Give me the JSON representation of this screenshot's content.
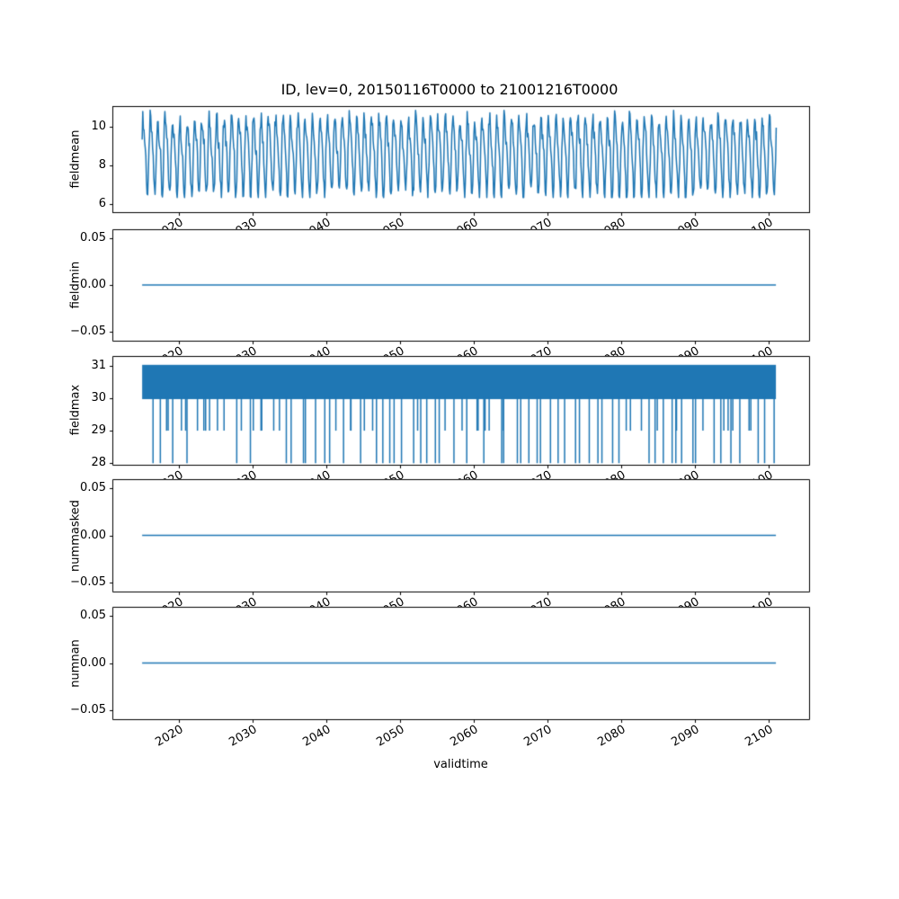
{
  "figure": {
    "title": "ID, lev=0, 20150116T0000 to 21001216T0000",
    "xlabel": "validtime",
    "line_color": "#1f77b4",
    "axis_color": "#000000",
    "background": "#ffffff"
  },
  "x_axis": {
    "label": "validtime",
    "xlim": [
      2011,
      2105.5
    ],
    "ticks": [
      2020,
      2030,
      2040,
      2050,
      2060,
      2070,
      2080,
      2090,
      2100
    ],
    "tick_rotation_deg": 30,
    "data_start": 2015.04,
    "data_end": 2101.0
  },
  "chart_data": [
    {
      "type": "line",
      "ylabel": "fieldmean",
      "pattern": "seasonal-oscillation",
      "samples_per_year": 12,
      "value_min": 6.4,
      "value_max": 11.0,
      "value_mean": 8.8,
      "ylim": [
        5.6,
        11.05
      ],
      "yticks": [
        {
          "v": 10,
          "label": "10"
        },
        {
          "v": 8,
          "label": "8"
        },
        {
          "v": 6,
          "label": "6"
        }
      ]
    },
    {
      "type": "constant",
      "ylabel": "fieldmin",
      "value": 0,
      "ylim": [
        -0.06,
        0.06
      ],
      "yticks": [
        {
          "v": 0.05,
          "label": "0.05"
        },
        {
          "v": 0,
          "label": "0.00"
        },
        {
          "v": -0.05,
          "label": "−0.05"
        }
      ]
    },
    {
      "type": "band-spikes",
      "ylabel": "fieldmax",
      "band_low": 30,
      "band_high": 31,
      "spike_depths": [
        28,
        29
      ],
      "spikes_per_year": 1,
      "ylim": [
        27.95,
        31.3
      ],
      "yticks": [
        {
          "v": 31,
          "label": "31"
        },
        {
          "v": 30,
          "label": "30"
        },
        {
          "v": 29,
          "label": "29"
        },
        {
          "v": 28,
          "label": "28"
        }
      ]
    },
    {
      "type": "constant",
      "ylabel": "nummasked",
      "value": 0,
      "ylim": [
        -0.06,
        0.06
      ],
      "yticks": [
        {
          "v": 0.05,
          "label": "0.05"
        },
        {
          "v": 0,
          "label": "0.00"
        },
        {
          "v": -0.05,
          "label": "−0.05"
        }
      ]
    },
    {
      "type": "constant",
      "ylabel": "numnan",
      "value": 0,
      "ylim": [
        -0.06,
        0.06
      ],
      "yticks": [
        {
          "v": 0.05,
          "label": "0.05"
        },
        {
          "v": 0,
          "label": "0.00"
        },
        {
          "v": -0.05,
          "label": "−0.05"
        }
      ]
    }
  ]
}
